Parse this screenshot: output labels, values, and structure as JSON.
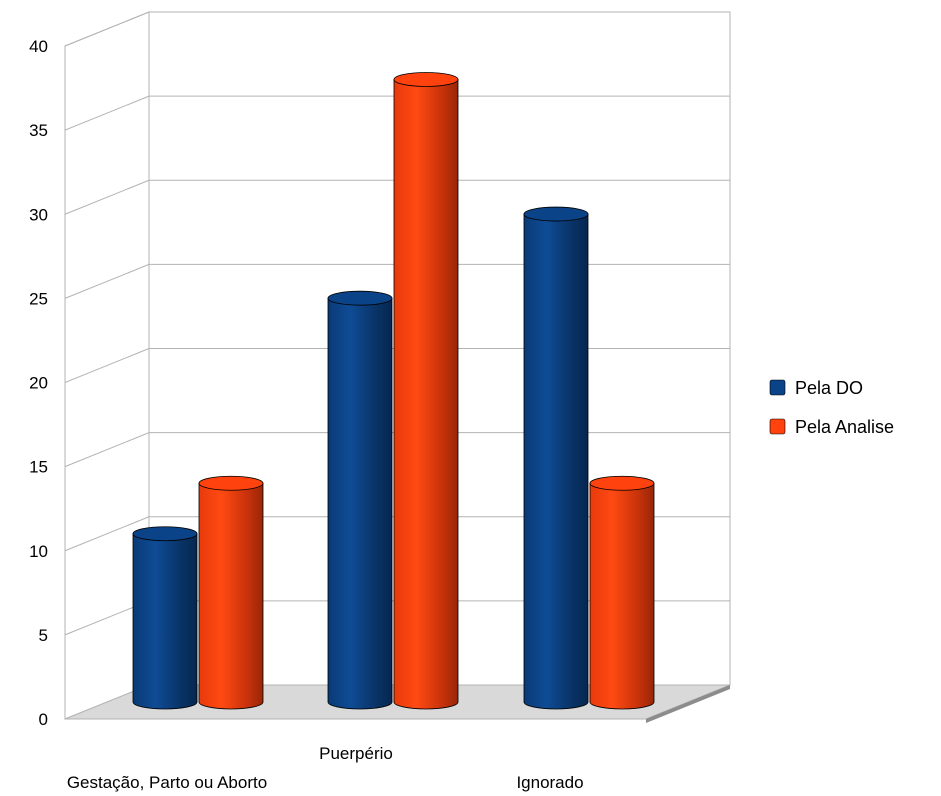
{
  "chart_data": {
    "type": "bar",
    "categories": [
      "Gestação, Parto ou Aborto",
      "Puerpério",
      "Ignorado"
    ],
    "series": [
      {
        "name": "Pela DO",
        "values": [
          10,
          24,
          29
        ],
        "color": "#0b4388"
      },
      {
        "name": "Pela Analise",
        "values": [
          13,
          37,
          13
        ],
        "color": "#ff420e"
      }
    ],
    "ylim": [
      0,
      40
    ],
    "yticks": [
      "0",
      "5",
      "10",
      "15",
      "20",
      "25",
      "30",
      "35",
      "40"
    ],
    "grid": true,
    "legend": "right",
    "style": "3d-cylinder"
  }
}
